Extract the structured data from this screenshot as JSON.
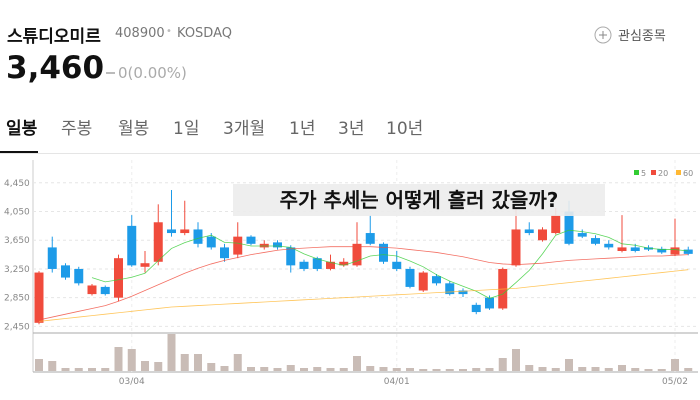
{
  "header": {
    "name": "스튜디오미르",
    "code": "408900",
    "market": "KOSDAQ",
    "watch": "관심종목",
    "price": "3,460",
    "change": "0(0.00%)"
  },
  "tabs": [
    "일봉",
    "주봉",
    "월봉",
    "1일",
    "3개월",
    "1년",
    "3년",
    "10년"
  ],
  "chart_data": {
    "type": "candlestick",
    "annotation": "주가 추세는 어떻게 흘러 갔을까?",
    "categories": [
      null,
      null,
      null,
      null,
      null,
      null,
      null,
      "03/04",
      null,
      null,
      null,
      null,
      null,
      null,
      null,
      null,
      null,
      null,
      null,
      null,
      null,
      null,
      null,
      null,
      null,
      null,
      null,
      "04/01",
      null,
      null,
      null,
      null,
      null,
      null,
      null,
      null,
      null,
      null,
      null,
      null,
      null,
      null,
      null,
      null,
      null,
      null,
      null,
      null,
      "05/02",
      null
    ],
    "open": [
      2500,
      3550,
      3300,
      3250,
      2900,
      3000,
      2850,
      3850,
      3280,
      3350,
      3800,
      3750,
      3800,
      3700,
      3550,
      3450,
      3700,
      3550,
      3620,
      3550,
      3350,
      3400,
      3250,
      3300,
      3300,
      3750,
      3600,
      3350,
      3250,
      2950,
      3150,
      3050,
      2950,
      2750,
      2850,
      2700,
      3300,
      3800,
      3650,
      3750,
      4050,
      3750,
      3680,
      3600,
      3500,
      3550,
      3550,
      3530,
      3450,
      3520
    ],
    "high": [
      3220,
      3700,
      3330,
      3280,
      3040,
      3020,
      3450,
      4000,
      3500,
      4150,
      4350,
      4200,
      3900,
      3750,
      3600,
      3900,
      3720,
      3650,
      3650,
      3580,
      3380,
      3420,
      3450,
      3400,
      3900,
      4000,
      3620,
      3500,
      3280,
      3220,
      3180,
      3080,
      2980,
      2780,
      2880,
      3270,
      4100,
      3900,
      3830,
      4100,
      4200,
      3800,
      3720,
      3650,
      4000,
      3600,
      3580,
      3560,
      3950,
      3560
    ],
    "low": [
      2480,
      3200,
      3100,
      3020,
      2880,
      2880,
      2800,
      3280,
      3200,
      3300,
      3700,
      3720,
      3550,
      3520,
      3350,
      3400,
      3580,
      3520,
      3520,
      3200,
      3220,
      3220,
      3230,
      3280,
      3280,
      3580,
      3320,
      3220,
      2980,
      2930,
      3020,
      2880,
      2860,
      2620,
      2680,
      2680,
      3280,
      3720,
      3630,
      3730,
      3580,
      3680,
      3580,
      3520,
      3480,
      3480,
      3500,
      3460,
      3430,
      3440
    ],
    "close": [
      3200,
      3250,
      3130,
      3050,
      3020,
      2900,
      3400,
      3300,
      3330,
      3900,
      3750,
      3800,
      3600,
      3550,
      3400,
      3700,
      3600,
      3600,
      3550,
      3300,
      3250,
      3250,
      3350,
      3350,
      3600,
      3600,
      3350,
      3250,
      3000,
      3200,
      3050,
      2900,
      2900,
      2650,
      2700,
      3250,
      3800,
      3750,
      3800,
      4000,
      3600,
      3700,
      3600,
      3550,
      3550,
      3500,
      3520,
      3480,
      3550,
      3460
    ],
    "volume": [
      12,
      10,
      3,
      3,
      3,
      3,
      24,
      22,
      10,
      9,
      37,
      17,
      17,
      8,
      5,
      17,
      4,
      4,
      3,
      6,
      3,
      4,
      3,
      3,
      15,
      5,
      4,
      3,
      3,
      2,
      2,
      2,
      2,
      3,
      3,
      13,
      22,
      6,
      4,
      3,
      12,
      4,
      4,
      3,
      6,
      3,
      2,
      2,
      12,
      3
    ],
    "up_color": "#f04b3c",
    "down_color": "#1d9be8",
    "volume_color": "#c9bcb6",
    "series": [
      {
        "name": "5",
        "color": "#33cc33",
        "values": [
          null,
          null,
          null,
          null,
          3130,
          3070,
          3100,
          3134,
          3190,
          3366,
          3536,
          3616,
          3676,
          3720,
          3620,
          3610,
          3570,
          3570,
          3570,
          3550,
          3460,
          3390,
          3340,
          3300,
          3360,
          3430,
          3450,
          3430,
          3360,
          3280,
          3170,
          3080,
          3010,
          2940,
          2840,
          2900,
          3060,
          3230,
          3460,
          3720,
          3790,
          3770,
          3740,
          3690,
          3600,
          3580,
          3540,
          3520,
          3520,
          3500
        ]
      },
      {
        "name": "20",
        "color": "#f04b3c",
        "values": [
          2540,
          2580,
          2620,
          2660,
          2700,
          2740,
          2800,
          2870,
          2950,
          3030,
          3110,
          3190,
          3260,
          3320,
          3370,
          3410,
          3450,
          3480,
          3510,
          3530,
          3540,
          3550,
          3560,
          3560,
          3560,
          3560,
          3550,
          3540,
          3520,
          3500,
          3480,
          3450,
          3420,
          3380,
          3340,
          3320,
          3310,
          3320,
          3330,
          3350,
          3370,
          3380,
          3390,
          3400,
          3410,
          3420,
          3430,
          3430,
          3440,
          3450
        ]
      },
      {
        "name": "60",
        "color": "#ffb833",
        "values": [
          2520,
          2540,
          2560,
          2580,
          2600,
          2620,
          2640,
          2660,
          2680,
          2700,
          2720,
          2730,
          2740,
          2750,
          2760,
          2770,
          2780,
          2790,
          2800,
          2810,
          2820,
          2830,
          2840,
          2850,
          2860,
          2870,
          2880,
          2890,
          2900,
          2910,
          2920,
          2930,
          2940,
          2950,
          2960,
          2970,
          2980,
          3000,
          3020,
          3040,
          3060,
          3080,
          3100,
          3120,
          3140,
          3160,
          3180,
          3200,
          3220,
          3240
        ]
      }
    ],
    "ylim": [
      2400,
      4600
    ],
    "yticks": [
      {
        "value": 2450,
        "label": "2,450"
      },
      {
        "value": 2850,
        "label": "2,850"
      },
      {
        "value": 3250,
        "label": "3,250"
      },
      {
        "value": 3650,
        "label": "3,650"
      },
      {
        "value": 4050,
        "label": "4,050"
      },
      {
        "value": 4450,
        "label": "4,450"
      }
    ],
    "grid": true,
    "legend": "top-right"
  }
}
